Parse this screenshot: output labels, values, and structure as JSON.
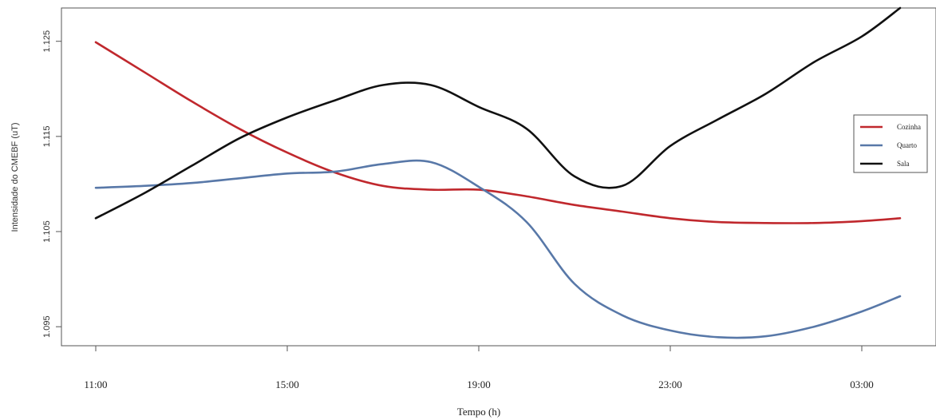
{
  "chart_data": {
    "type": "line",
    "title": "",
    "xlabel": "Tempo (h)",
    "ylabel": "Intensidade do CMEBF (uT)",
    "x_ticks": [
      "11:00",
      "15:00",
      "19:00",
      "23:00",
      "03:00"
    ],
    "x_hours": [
      0,
      4,
      8,
      12,
      16
    ],
    "y_ticks": [
      1.095,
      1.105,
      1.115,
      1.125
    ],
    "y_tick_labels": [
      "1.095",
      "1.105",
      "1.115",
      "1.125"
    ],
    "ylim": [
      1.093,
      1.1285
    ],
    "legend_position": "right",
    "grid": false,
    "series": [
      {
        "name": "Cozinha",
        "color": "#c0282d",
        "x": [
          0,
          1,
          2,
          3,
          4,
          5,
          6,
          7,
          8,
          9,
          10,
          11,
          12,
          13,
          14,
          15,
          16,
          16.8
        ],
        "y": [
          1.1249,
          1.1218,
          1.1187,
          1.1158,
          1.1133,
          1.1112,
          1.1098,
          1.1094,
          1.1094,
          1.1087,
          1.1078,
          1.1071,
          1.1064,
          1.106,
          1.1059,
          1.1059,
          1.1061,
          1.1064
        ]
      },
      {
        "name": "Quarto",
        "color": "#5878a8",
        "x": [
          0,
          1,
          2,
          3,
          4,
          5,
          6,
          7,
          8,
          9,
          10,
          11,
          12,
          13,
          14,
          15,
          16,
          16.8
        ],
        "y": [
          1.1096,
          1.1098,
          1.1101,
          1.1106,
          1.1111,
          1.1113,
          1.1121,
          1.1123,
          1.1097,
          1.106,
          1.0995,
          1.0962,
          1.0946,
          1.0939,
          1.094,
          1.095,
          1.0966,
          1.0982
        ]
      },
      {
        "name": "Sala",
        "color": "#111111",
        "x": [
          0,
          1,
          2,
          3,
          4,
          5,
          6,
          7,
          8,
          9,
          10,
          11,
          12,
          13,
          14,
          15,
          16,
          16.8
        ],
        "y": [
          1.1064,
          1.109,
          1.1119,
          1.1148,
          1.117,
          1.1188,
          1.1204,
          1.1204,
          1.1181,
          1.1158,
          1.1108,
          1.1098,
          1.114,
          1.1168,
          1.1195,
          1.1228,
          1.1255,
          1.1285
        ]
      }
    ]
  }
}
